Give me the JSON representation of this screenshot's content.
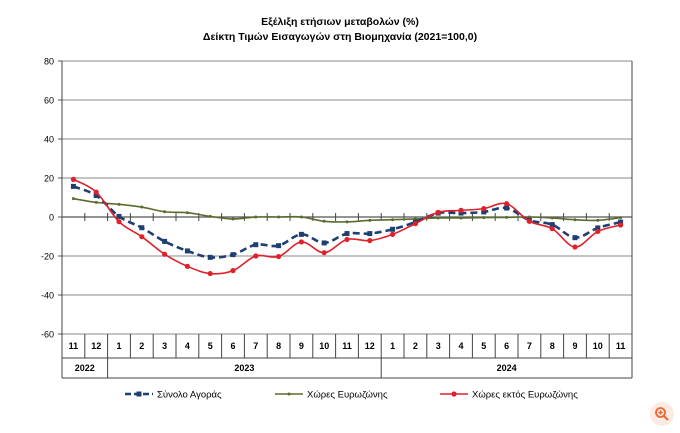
{
  "chart_data": {
    "type": "line",
    "title": "Εξέλιξη ετήσιων μεταβολών (%)",
    "subtitle": "Δείκτη Τιμών Εισαγωγών στη Βιομηχανία (2021=100,0)",
    "xlabel": "",
    "ylabel": "",
    "ylim": [
      -60,
      80
    ],
    "yticks": [
      80,
      60,
      40,
      20,
      0,
      -20,
      -40,
      -60
    ],
    "grid": true,
    "legend_position": "bottom",
    "months": [
      "11",
      "12",
      "1",
      "2",
      "3",
      "4",
      "5",
      "6",
      "7",
      "8",
      "9",
      "10",
      "11",
      "12",
      "1",
      "2",
      "3",
      "4",
      "5",
      "6",
      "7",
      "8",
      "9",
      "10",
      "11"
    ],
    "years": [
      {
        "label": "2022",
        "span": 2
      },
      {
        "label": "2023",
        "span": 12
      },
      {
        "label": "2024",
        "span": 11
      }
    ],
    "series": [
      {
        "name": "Σύνολο Αγοράς",
        "color": "#1f3f73",
        "style": "dashed",
        "marker": "square",
        "values": [
          15.7,
          11,
          0.3,
          -5.5,
          -12.5,
          -17.4,
          -20.7,
          -19.3,
          -14.2,
          -14.7,
          -8.9,
          -13.3,
          -8.5,
          -8.5,
          -6.3,
          -2.6,
          2,
          2,
          2.6,
          4.6,
          -1.7,
          -3.9,
          -10.6,
          -5.6,
          -2.6
        ]
      },
      {
        "name": "Χώρες Ευρωζώνης",
        "color": "#5b6b2e",
        "style": "solid",
        "marker": "small",
        "values": [
          9.4,
          7.5,
          6.5,
          5.1,
          2.7,
          2.2,
          0.3,
          -1,
          0,
          0,
          0,
          -2.2,
          -2.5,
          -1.7,
          -1.4,
          -1,
          -0.5,
          -0.5,
          -0.3,
          -0.2,
          0,
          -0.5,
          -1.4,
          -1.7,
          -0.3
        ]
      },
      {
        "name": "Χώρες εκτός Ευρωζώνης",
        "color": "#e0202a",
        "style": "solid",
        "marker": "circle",
        "values": [
          19.3,
          12.8,
          -2.4,
          -10.1,
          -19.1,
          -25.3,
          -29,
          -27.5,
          -20,
          -20.3,
          -12.8,
          -18.3,
          -11.5,
          -12.1,
          -8.9,
          -3.4,
          2.4,
          3.4,
          4.3,
          6.8,
          -2.2,
          -6,
          -15.4,
          -7.4,
          -4.1
        ]
      }
    ]
  },
  "zoom_icon": "zoom-in-icon"
}
